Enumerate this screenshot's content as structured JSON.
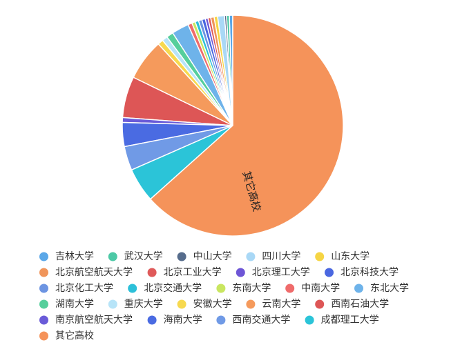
{
  "chart_data": {
    "type": "pie",
    "title": "",
    "slices": [
      {
        "label": "吉林大学",
        "value": 0.5,
        "color": "#5AA7E8"
      },
      {
        "label": "武汉大学",
        "value": 0.4,
        "color": "#4CC9A6"
      },
      {
        "label": "中山大学",
        "value": 0.3,
        "color": "#566C8C"
      },
      {
        "label": "四川大学",
        "value": 1.0,
        "color": "#A9D8F6"
      },
      {
        "label": "山东大学",
        "value": 0.5,
        "color": "#F6D544"
      },
      {
        "label": "北京航空航天大学",
        "value": 0.5,
        "color": "#F0955B"
      },
      {
        "label": "北京工业大学",
        "value": 0.4,
        "color": "#DF5A5A"
      },
      {
        "label": "北京理工大学",
        "value": 0.4,
        "color": "#6E56D6"
      },
      {
        "label": "北京科技大学",
        "value": 0.5,
        "color": "#4A67E0"
      },
      {
        "label": "北京化工大学",
        "value": 0.5,
        "color": "#6C94E2"
      },
      {
        "label": "北京交通大学",
        "value": 0.5,
        "color": "#2CC0D9"
      },
      {
        "label": "东南大学",
        "value": 0.5,
        "color": "#C9E660"
      },
      {
        "label": "中南大学",
        "value": 0.6,
        "color": "#EF6B6B"
      },
      {
        "label": "东北大学",
        "value": 2.5,
        "color": "#6EB3EA"
      },
      {
        "label": "湖南大学",
        "value": 1.0,
        "color": "#56CF9C"
      },
      {
        "label": "重庆大学",
        "value": 0.8,
        "color": "#B7E4F8"
      },
      {
        "label": "安徽大学",
        "value": 0.8,
        "color": "#F7D94F"
      },
      {
        "label": "云南大学",
        "value": 6.0,
        "color": "#F59A5C"
      },
      {
        "label": "西南石油大学",
        "value": 6.0,
        "color": "#DD5656"
      },
      {
        "label": "南京航空航天大学",
        "value": 0.7,
        "color": "#6A5BD8"
      },
      {
        "label": "海南大学",
        "value": 3.5,
        "color": "#4A6BE2"
      },
      {
        "label": "西南交通大学",
        "value": 3.5,
        "color": "#709AE6"
      },
      {
        "label": "成都理工大学",
        "value": 5.0,
        "color": "#2BC4D8"
      },
      {
        "label": "其它高校",
        "value": 63.0,
        "color": "#F5935A"
      }
    ],
    "slice_label": "其它高校",
    "legend_position": "bottom",
    "legend_order": [
      "吉林大学",
      "武汉大学",
      "中山大学",
      "四川大学",
      "山东大学",
      "北京航空航天大学",
      "北京工业大学",
      "北京理工大学",
      "北京科技大学",
      "北京化工大学",
      "北京交通大学",
      "东南大学",
      "中南大学",
      "东北大学",
      "湖南大学",
      "重庆大学",
      "安徽大学",
      "云南大学",
      "西南石油大学",
      "南京航空航天大学",
      "海南大学",
      "西南交通大学",
      "成都理工大学",
      "其它高校"
    ]
  }
}
